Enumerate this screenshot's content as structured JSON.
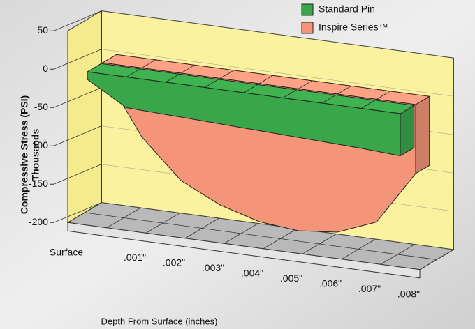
{
  "chart_data": {
    "type": "area3d",
    "y_label": "Compressive Stress (PSI)",
    "y_label_2": "Thousands",
    "x_label": "Depth From Surface (inches)",
    "categories": [
      "Surface",
      ".001\"",
      ".002\"",
      ".003\"",
      ".004\"",
      ".005\"",
      ".006\"",
      ".007\"",
      ".008\""
    ],
    "series": [
      {
        "name": "Standard Pin",
        "color": "#3aa64a",
        "values": [
          -10,
          -40,
          -42,
          -44,
          -46,
          -48,
          -50,
          -52,
          -55
        ]
      },
      {
        "name": "Inspire Series™",
        "color": "#f4957a",
        "values": [
          -10,
          -90,
          -140,
          -165,
          -180,
          -185,
          -180,
          -160,
          -90
        ]
      }
    ],
    "ylim": [
      -200,
      50
    ],
    "yticks": [
      50,
      0,
      -50,
      -100,
      -150,
      -200
    ],
    "grid": true,
    "legend": "top-right"
  }
}
